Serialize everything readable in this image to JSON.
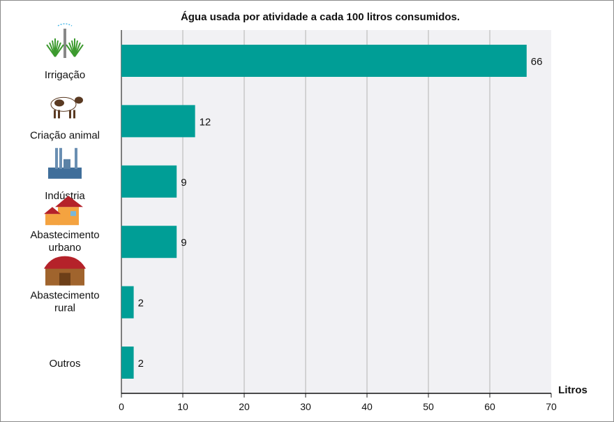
{
  "chart_data": {
    "type": "bar",
    "orientation": "horizontal",
    "title": "Água usada por atividade a cada 100 litros consumidos.",
    "xlabel": "Litros",
    "categories": [
      [
        "Irrigação"
      ],
      [
        "Criação animal"
      ],
      [
        "Indústria"
      ],
      [
        "Abastecimento",
        "urbano"
      ],
      [
        "Abastecimento",
        "rural"
      ],
      [
        "Outros"
      ]
    ],
    "icons": [
      "irrigation-icon",
      "cow-icon",
      "factory-icon",
      "house-icon",
      "barn-icon",
      ""
    ],
    "values": [
      66,
      12,
      9,
      9,
      2,
      2
    ],
    "xlim": [
      0,
      70
    ],
    "xticks": [
      0,
      10,
      20,
      30,
      40,
      50,
      60,
      70
    ],
    "grid": true,
    "colors": {
      "bar": "#009e96",
      "plot_bg": "#f1f1f4",
      "grid": "#bdbdbd"
    }
  }
}
